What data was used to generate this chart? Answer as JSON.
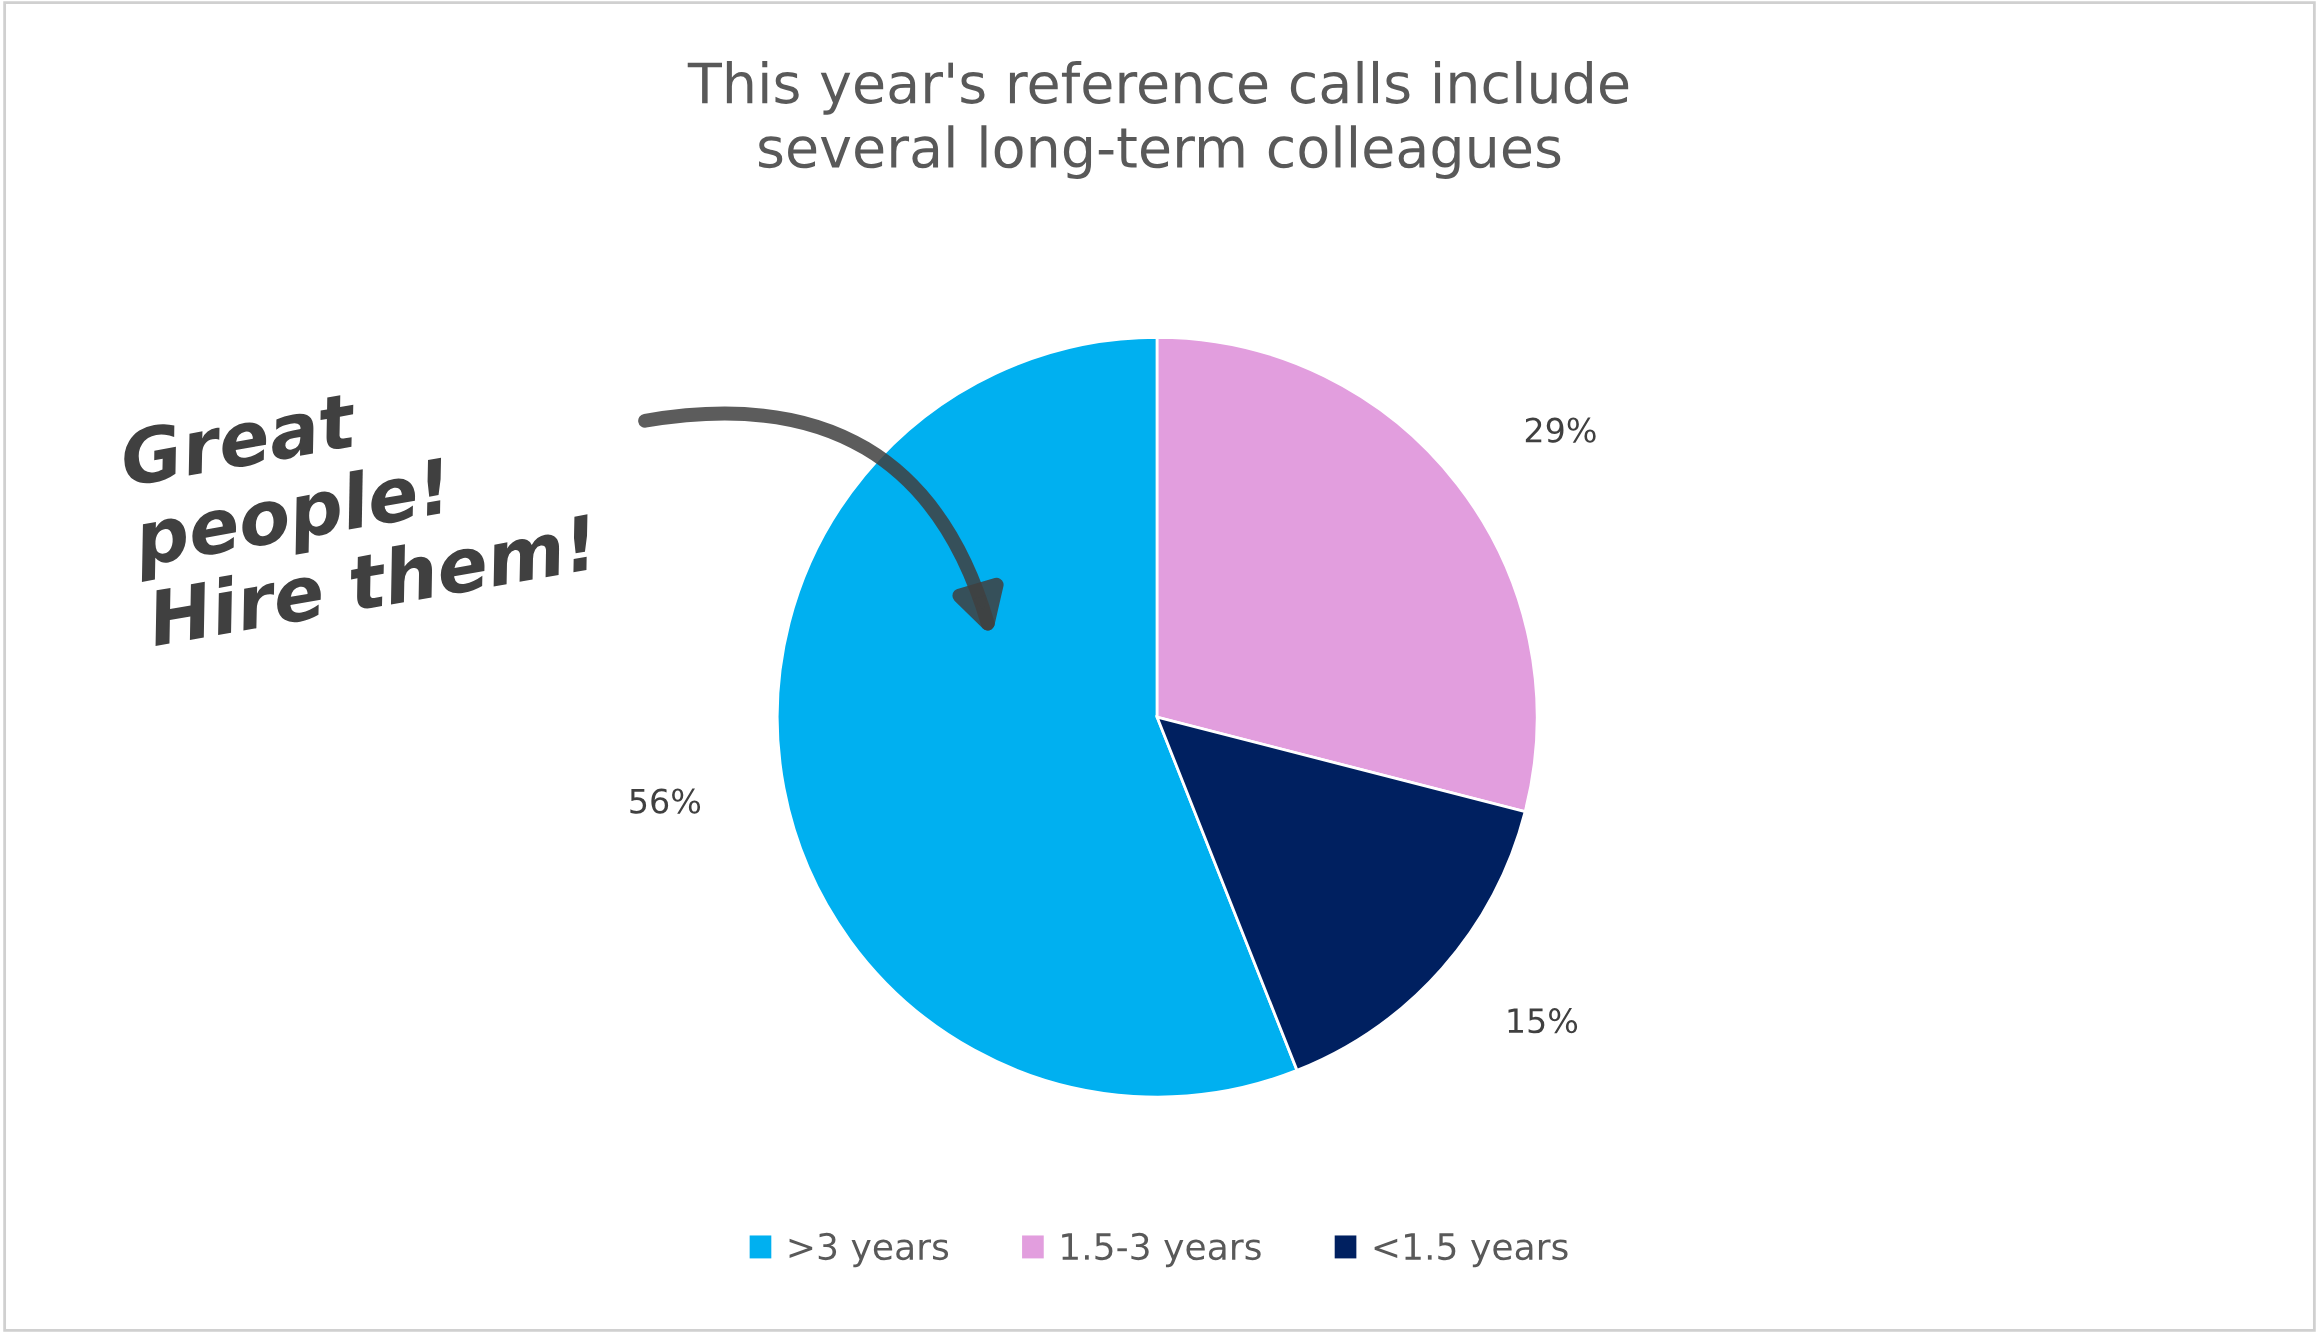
{
  "chart_data": {
    "type": "pie",
    "title": "This year's reference calls include\nseveral long-term colleagues",
    "categories": [
      ">3 years",
      "1.5-3 years",
      "<1.5 years"
    ],
    "values": [
      56,
      29,
      15
    ],
    "value_labels": [
      "56%",
      "29%",
      "15%"
    ],
    "colors": [
      "#00b0f0",
      "#e29ede",
      "#002060"
    ],
    "legend": "bottom",
    "annotations": [
      "Great\npeople!\nHire them!"
    ]
  }
}
